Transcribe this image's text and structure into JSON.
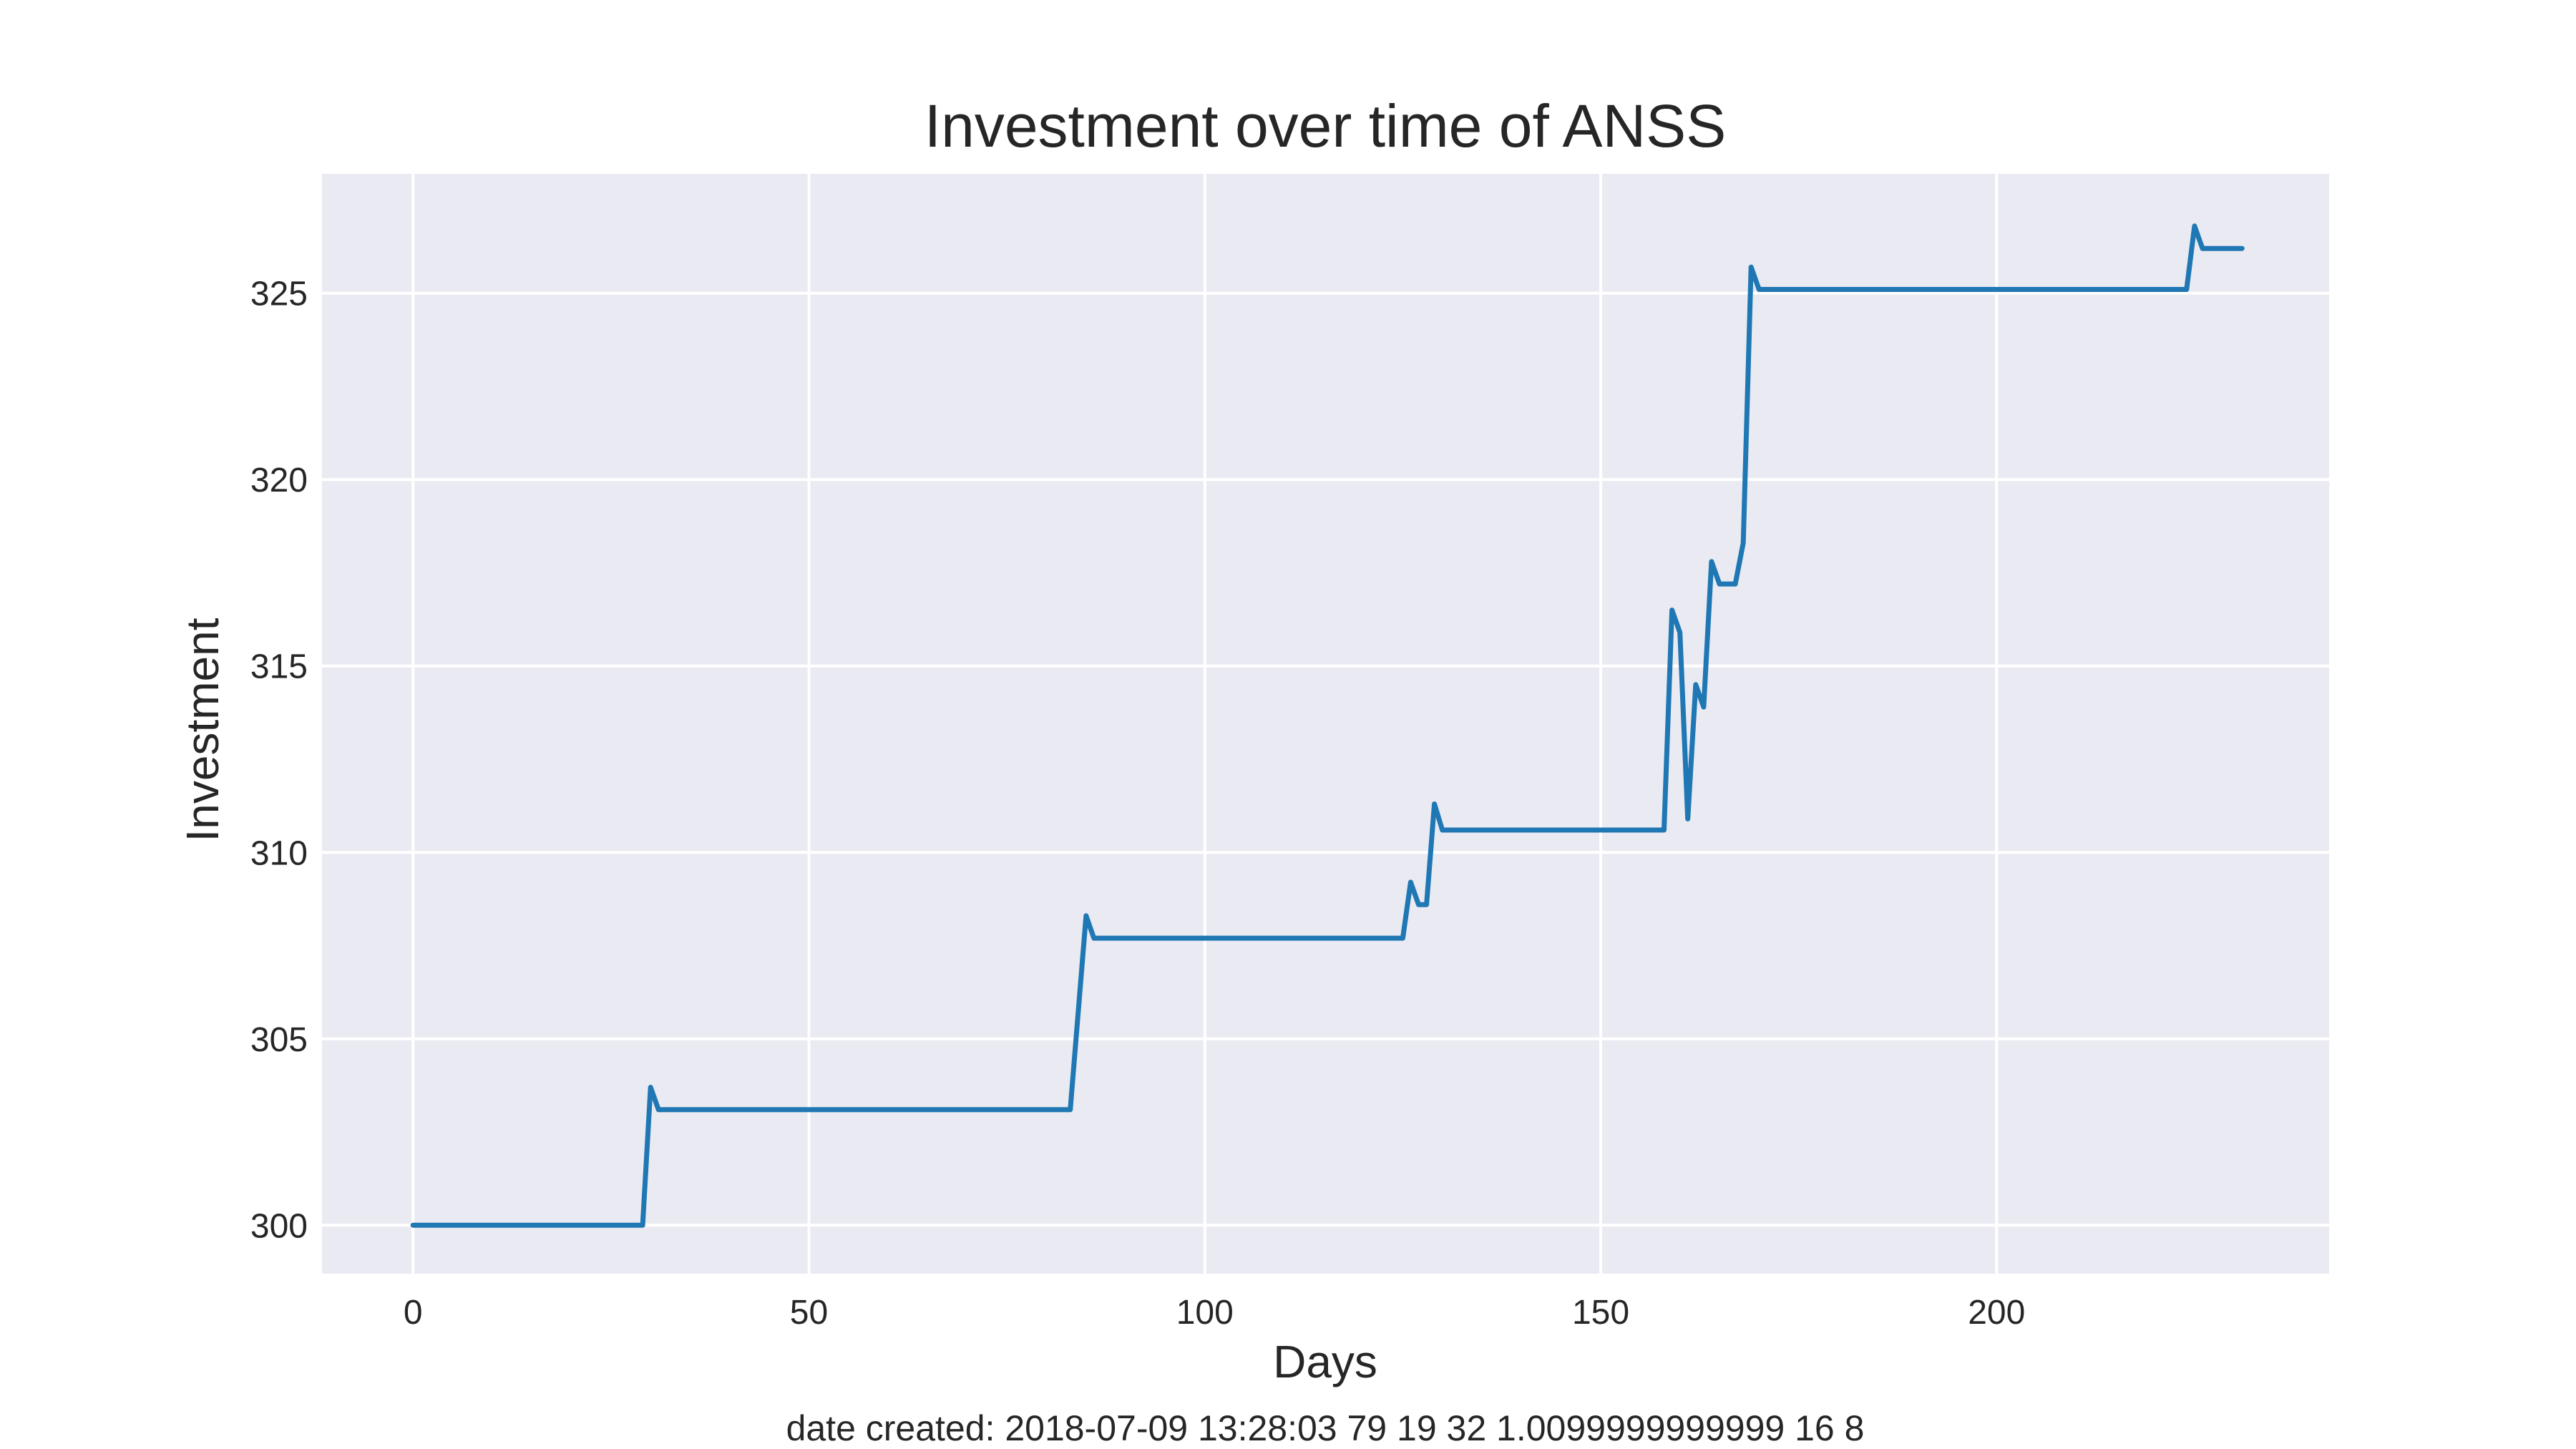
{
  "chart_data": {
    "type": "line",
    "title": "Investment over time of ANSS",
    "xlabel": "Days",
    "ylabel": "Investment",
    "xlim": [
      -11.5,
      242
    ],
    "ylim": [
      298.7,
      328.2
    ],
    "xticks": [
      0,
      50,
      100,
      150,
      200
    ],
    "yticks": [
      300,
      305,
      310,
      315,
      320,
      325
    ],
    "grid": true,
    "background": "#eaeaf2",
    "line_color": "#1f77b4",
    "series": [
      {
        "x": [
          0,
          29,
          30,
          31,
          83,
          85,
          86,
          125,
          126,
          127,
          128,
          129,
          130,
          158,
          159,
          160,
          161,
          162,
          163,
          164,
          165,
          167,
          168,
          169,
          170,
          224,
          225,
          226,
          231
        ],
        "y": [
          300.0,
          300.0,
          303.7,
          303.1,
          303.1,
          308.3,
          307.7,
          307.7,
          309.2,
          308.6,
          308.6,
          311.3,
          310.6,
          310.6,
          316.5,
          315.9,
          310.9,
          314.5,
          313.9,
          317.8,
          317.2,
          317.2,
          318.3,
          325.7,
          325.1,
          325.1,
          326.8,
          326.2,
          326.2
        ]
      }
    ],
    "footer": "date created: 2018-07-09 13:28:03 79 19 32 1.0099999999999 16 8"
  }
}
